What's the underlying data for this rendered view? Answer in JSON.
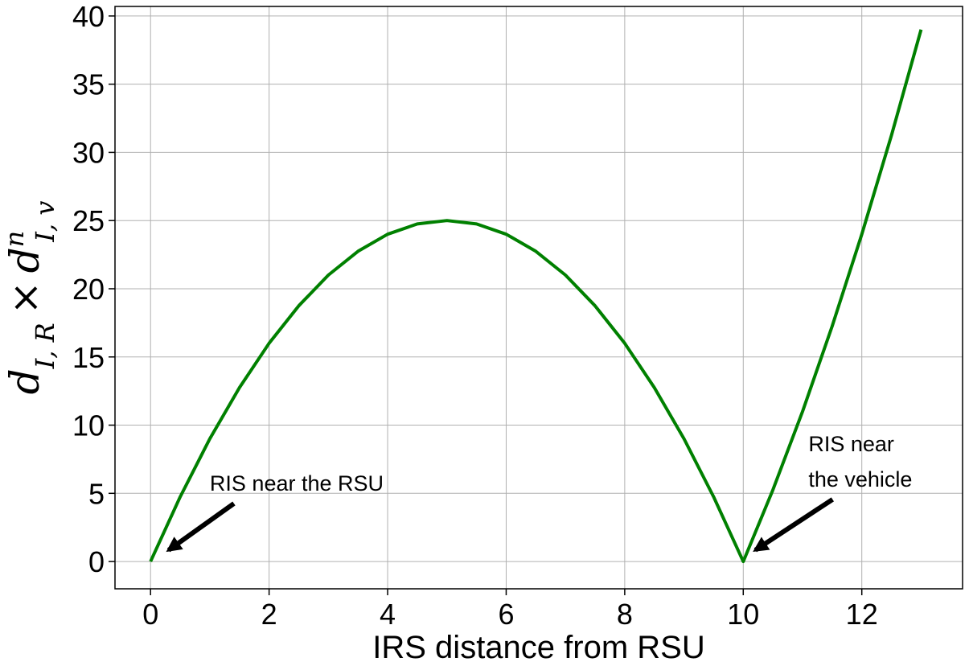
{
  "chart_data": {
    "type": "line",
    "xlabel": "IRS distance from RSU",
    "ylabel": {
      "base": "d",
      "sub1": "I, R",
      "times": "×",
      "base2": "d",
      "sup2": "n",
      "sub2": "I, v"
    },
    "xlim": [
      -0.6,
      13.7
    ],
    "ylim": [
      -2,
      40.7
    ],
    "xticks": [
      0,
      2,
      4,
      6,
      8,
      10,
      12
    ],
    "yticks": [
      0,
      5,
      10,
      15,
      20,
      25,
      30,
      35,
      40
    ],
    "grid": true,
    "series": [
      {
        "color": "#008000",
        "x": [
          0,
          0.5,
          1,
          1.5,
          2,
          2.5,
          3,
          3.5,
          4,
          4.5,
          5,
          5.5,
          6,
          6.5,
          7,
          7.5,
          8,
          8.5,
          9,
          9.5,
          10,
          10.5,
          11,
          11.5,
          12,
          12.5,
          13
        ],
        "y": [
          0,
          4.75,
          9,
          12.75,
          16,
          18.75,
          21,
          22.75,
          24,
          24.75,
          25,
          24.75,
          24,
          22.75,
          21,
          18.75,
          16,
          12.75,
          9,
          4.75,
          0,
          5.25,
          11,
          17.25,
          24,
          31.25,
          39
        ]
      }
    ],
    "annotations": [
      {
        "lines": [
          "RIS near the RSU"
        ],
        "point": [
          0.25,
          0.6
        ],
        "text_at": [
          1.0,
          5.2
        ]
      },
      {
        "lines": [
          "RIS near",
          "the vehicle"
        ],
        "point": [
          10.15,
          0.6
        ],
        "text_at": [
          11.1,
          5.5
        ]
      }
    ]
  }
}
